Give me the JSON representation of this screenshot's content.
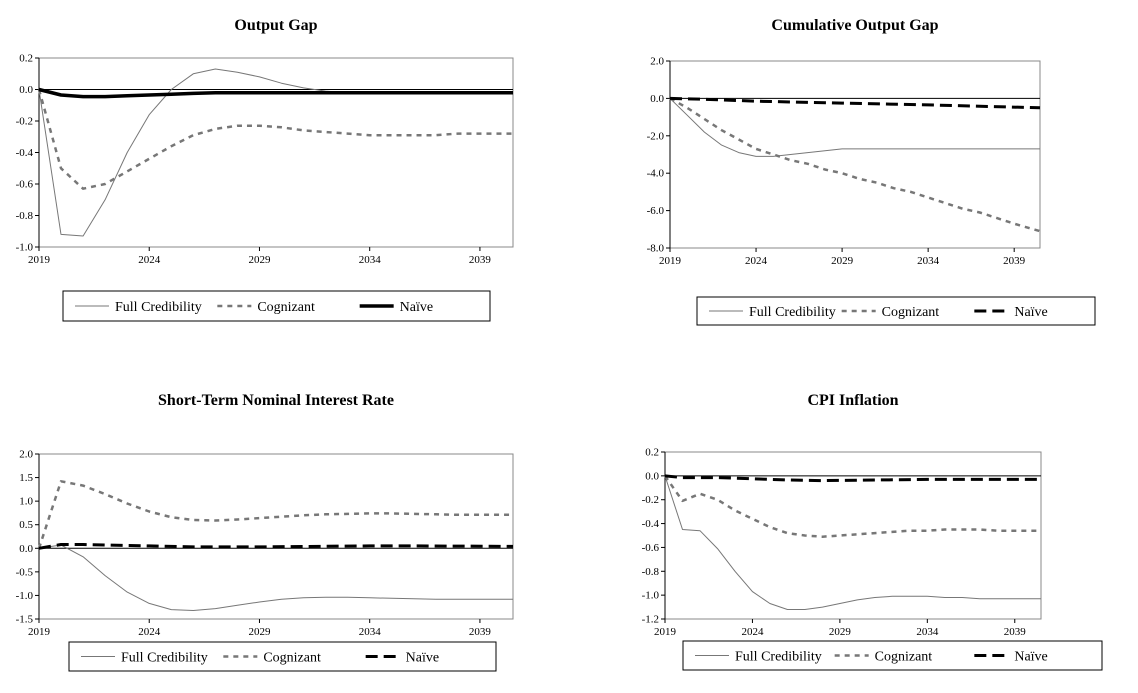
{
  "chart_data": [
    {
      "type": "line",
      "title": "Output Gap",
      "xlabel": "",
      "ylabel": "",
      "x_ticks": [
        "2019",
        "2024",
        "2029",
        "2034",
        "2039"
      ],
      "y_ticks": [
        "0.2",
        "0.0",
        "-0.2",
        "-0.4",
        "-0.6",
        "-0.8",
        "-1.0"
      ],
      "xlim": [
        2019,
        2040.5
      ],
      "ylim": [
        -1.0,
        0.2
      ],
      "legend": "bottom",
      "grid": false,
      "series": [
        {
          "name": "Full Credibility",
          "style": "thin-solid",
          "color": "#777777",
          "x": [
            2019,
            2020,
            2021,
            2022,
            2023,
            2024,
            2025,
            2026,
            2027,
            2028,
            2029,
            2030,
            2031,
            2032,
            2033,
            2034,
            2035,
            2036,
            2037,
            2038,
            2039,
            2040.5
          ],
          "y": [
            0.0,
            -0.92,
            -0.93,
            -0.7,
            -0.4,
            -0.16,
            0.0,
            0.1,
            0.13,
            0.11,
            0.08,
            0.04,
            0.01,
            -0.01,
            -0.02,
            -0.02,
            -0.02,
            -0.02,
            -0.02,
            -0.02,
            -0.02,
            -0.02
          ]
        },
        {
          "name": "Cognizant",
          "style": "dotted",
          "color": "#777777",
          "x": [
            2019,
            2020,
            2021,
            2022,
            2023,
            2024,
            2025,
            2026,
            2027,
            2028,
            2029,
            2030,
            2031,
            2032,
            2033,
            2034,
            2035,
            2036,
            2037,
            2038,
            2039,
            2040.5
          ],
          "y": [
            0.0,
            -0.5,
            -0.63,
            -0.6,
            -0.52,
            -0.44,
            -0.36,
            -0.29,
            -0.25,
            -0.23,
            -0.23,
            -0.24,
            -0.26,
            -0.27,
            -0.28,
            -0.29,
            -0.29,
            -0.29,
            -0.29,
            -0.28,
            -0.28,
            -0.28
          ]
        },
        {
          "name": "Naïve",
          "style": "thick-solid",
          "color": "#000000",
          "x": [
            2019,
            2020,
            2021,
            2022,
            2023,
            2024,
            2025,
            2026,
            2027,
            2028,
            2029,
            2030,
            2031,
            2032,
            2033,
            2034,
            2035,
            2036,
            2037,
            2038,
            2039,
            2040.5
          ],
          "y": [
            0.0,
            -0.035,
            -0.045,
            -0.045,
            -0.04,
            -0.035,
            -0.03,
            -0.025,
            -0.02,
            -0.02,
            -0.02,
            -0.02,
            -0.02,
            -0.02,
            -0.02,
            -0.02,
            -0.02,
            -0.02,
            -0.02,
            -0.02,
            -0.02,
            -0.02
          ]
        }
      ]
    },
    {
      "type": "line",
      "title": "Cumulative Output Gap",
      "xlabel": "",
      "ylabel": "",
      "x_ticks": [
        "2019",
        "2024",
        "2029",
        "2034",
        "2039"
      ],
      "y_ticks": [
        "2.0",
        "0.0",
        "-2.0",
        "-4.0",
        "-6.0",
        "-8.0"
      ],
      "xlim": [
        2019,
        2040.5
      ],
      "ylim": [
        -8.0,
        2.0
      ],
      "legend": "bottom",
      "grid": false,
      "series": [
        {
          "name": "Full Credibility",
          "style": "thin-solid",
          "color": "#777777",
          "x": [
            2019,
            2020,
            2021,
            2022,
            2023,
            2024,
            2025,
            2026,
            2027,
            2028,
            2029,
            2030,
            2031,
            2032,
            2033,
            2034,
            2035,
            2036,
            2037,
            2038,
            2039,
            2040.5
          ],
          "y": [
            0.0,
            -0.9,
            -1.8,
            -2.5,
            -2.9,
            -3.1,
            -3.1,
            -3.0,
            -2.9,
            -2.8,
            -2.7,
            -2.7,
            -2.7,
            -2.7,
            -2.7,
            -2.7,
            -2.7,
            -2.7,
            -2.7,
            -2.7,
            -2.7,
            -2.7
          ]
        },
        {
          "name": "Cognizant",
          "style": "dotted",
          "color": "#777777",
          "x": [
            2019,
            2020,
            2021,
            2022,
            2023,
            2024,
            2025,
            2026,
            2027,
            2028,
            2029,
            2030,
            2031,
            2032,
            2033,
            2034,
            2035,
            2036,
            2037,
            2038,
            2039,
            2040.5
          ],
          "y": [
            0.0,
            -0.5,
            -1.1,
            -1.7,
            -2.2,
            -2.7,
            -3.0,
            -3.3,
            -3.5,
            -3.8,
            -4.0,
            -4.3,
            -4.5,
            -4.8,
            -5.0,
            -5.3,
            -5.6,
            -5.9,
            -6.1,
            -6.4,
            -6.7,
            -7.1
          ]
        },
        {
          "name": "Naïve",
          "style": "dashed",
          "color": "#000000",
          "x": [
            2019,
            2021,
            2024,
            2029,
            2034,
            2040.5
          ],
          "y": [
            0.0,
            -0.05,
            -0.15,
            -0.25,
            -0.35,
            -0.5
          ]
        }
      ]
    },
    {
      "type": "line",
      "title": "Short-Term Nominal Interest Rate",
      "xlabel": "",
      "ylabel": "",
      "x_ticks": [
        "2019",
        "2024",
        "2029",
        "2034",
        "2039"
      ],
      "y_ticks": [
        "2.0",
        "1.5",
        "1.0",
        "0.5",
        "0.0",
        "-0.5",
        "-1.0",
        "-1.5"
      ],
      "xlim": [
        2019,
        2040.5
      ],
      "ylim": [
        -1.5,
        2.0
      ],
      "legend": "bottom",
      "grid": false,
      "series": [
        {
          "name": "Full Credibility",
          "style": "thin-solid",
          "color": "#777777",
          "x": [
            2019,
            2020,
            2021,
            2022,
            2023,
            2024,
            2025,
            2026,
            2027,
            2028,
            2029,
            2030,
            2031,
            2032,
            2033,
            2034,
            2035,
            2036,
            2037,
            2038,
            2039,
            2040.5
          ],
          "y": [
            0.0,
            0.07,
            -0.18,
            -0.58,
            -0.93,
            -1.17,
            -1.3,
            -1.32,
            -1.28,
            -1.21,
            -1.14,
            -1.08,
            -1.05,
            -1.04,
            -1.04,
            -1.05,
            -1.06,
            -1.07,
            -1.08,
            -1.08,
            -1.08,
            -1.08
          ]
        },
        {
          "name": "Cognizant",
          "style": "dotted",
          "color": "#777777",
          "x": [
            2019,
            2020,
            2021,
            2022,
            2023,
            2024,
            2025,
            2026,
            2027,
            2028,
            2029,
            2030,
            2031,
            2032,
            2033,
            2034,
            2035,
            2036,
            2037,
            2038,
            2039,
            2040.5
          ],
          "y": [
            0.0,
            1.42,
            1.33,
            1.15,
            0.95,
            0.78,
            0.66,
            0.6,
            0.59,
            0.61,
            0.64,
            0.67,
            0.7,
            0.72,
            0.73,
            0.74,
            0.74,
            0.73,
            0.72,
            0.71,
            0.71,
            0.71
          ]
        },
        {
          "name": "Naïve",
          "style": "dashed",
          "color": "#000000",
          "x": [
            2019,
            2020,
            2021,
            2022,
            2024,
            2026,
            2029,
            2034,
            2036,
            2040.5
          ],
          "y": [
            0.0,
            0.08,
            0.08,
            0.07,
            0.05,
            0.03,
            0.03,
            0.05,
            0.05,
            0.04
          ]
        }
      ]
    },
    {
      "type": "line",
      "title": "CPI Inflation",
      "xlabel": "",
      "ylabel": "",
      "x_ticks": [
        "2019",
        "2024",
        "2029",
        "2034",
        "2039"
      ],
      "y_ticks": [
        "0.2",
        "0.0",
        "-0.2",
        "-0.4",
        "-0.6",
        "-0.8",
        "-1.0",
        "-1.2"
      ],
      "xlim": [
        2019,
        2040.5
      ],
      "ylim": [
        -1.2,
        0.2
      ],
      "legend": "bottom",
      "grid": false,
      "series": [
        {
          "name": "Full Credibility",
          "style": "thin-solid",
          "color": "#777777",
          "x": [
            2019,
            2020,
            2021,
            2022,
            2023,
            2024,
            2025,
            2026,
            2027,
            2028,
            2029,
            2030,
            2031,
            2032,
            2033,
            2034,
            2035,
            2036,
            2037,
            2038,
            2039,
            2040.5
          ],
          "y": [
            0.0,
            -0.45,
            -0.46,
            -0.61,
            -0.8,
            -0.97,
            -1.07,
            -1.12,
            -1.12,
            -1.1,
            -1.07,
            -1.04,
            -1.02,
            -1.01,
            -1.01,
            -1.01,
            -1.02,
            -1.02,
            -1.03,
            -1.03,
            -1.03,
            -1.03
          ]
        },
        {
          "name": "Cognizant",
          "style": "dotted",
          "color": "#777777",
          "x": [
            2019,
            2020,
            2021,
            2022,
            2023,
            2024,
            2025,
            2026,
            2027,
            2028,
            2029,
            2030,
            2031,
            2032,
            2033,
            2034,
            2035,
            2036,
            2037,
            2038,
            2039,
            2040.5
          ],
          "y": [
            0.0,
            -0.21,
            -0.15,
            -0.2,
            -0.29,
            -0.36,
            -0.43,
            -0.48,
            -0.5,
            -0.51,
            -0.5,
            -0.49,
            -0.48,
            -0.47,
            -0.46,
            -0.46,
            -0.45,
            -0.45,
            -0.45,
            -0.46,
            -0.46,
            -0.46
          ]
        },
        {
          "name": "Naïve",
          "style": "dashed",
          "color": "#000000",
          "x": [
            2019,
            2020,
            2022,
            2024,
            2026,
            2028,
            2031,
            2034,
            2040.5
          ],
          "y": [
            0.0,
            -0.015,
            -0.015,
            -0.025,
            -0.035,
            -0.04,
            -0.035,
            -0.03,
            -0.03
          ]
        }
      ]
    }
  ]
}
